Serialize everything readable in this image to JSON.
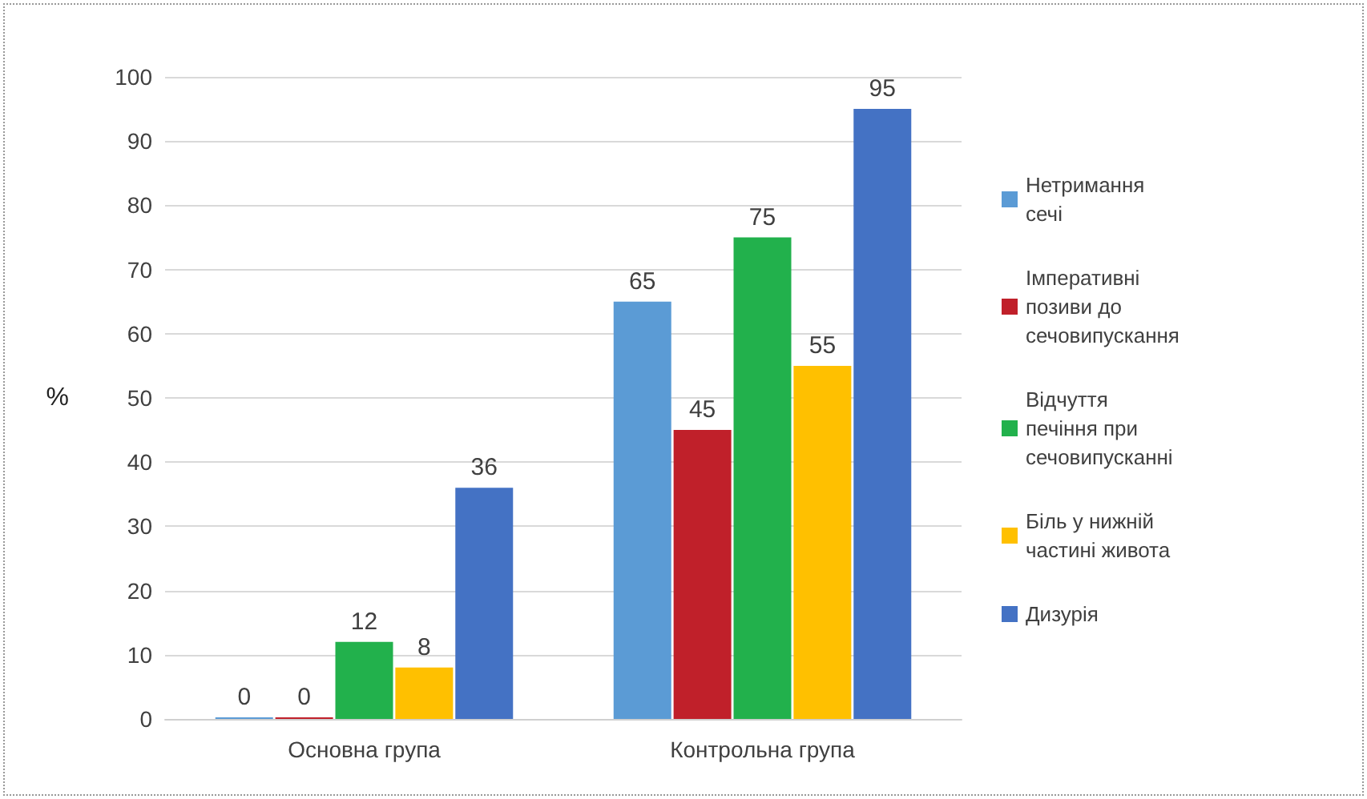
{
  "chart_data": {
    "type": "bar",
    "ylabel": "%",
    "categories": [
      "Основна група",
      "Контрольна група"
    ],
    "series": [
      {
        "name": "Нетримання сечі",
        "color": "#5b9bd5",
        "values": [
          0,
          65
        ]
      },
      {
        "name": "Імперативні позиви до сечовипускання",
        "color": "#c0202a",
        "values": [
          0,
          45
        ]
      },
      {
        "name": "Відчуття печіння при сечовипусканні",
        "color": "#22b14c",
        "values": [
          12,
          75
        ]
      },
      {
        "name": "Біль у нижній частині живота",
        "color": "#ffc000",
        "values": [
          8,
          55
        ]
      },
      {
        "name": "Дизурія",
        "color": "#4472c4",
        "values": [
          36,
          95
        ]
      }
    ],
    "ylim": [
      0,
      100
    ],
    "yticks": [
      0,
      10,
      20,
      30,
      40,
      50,
      60,
      70,
      80,
      90,
      100
    ],
    "grid": "y",
    "legend": "right",
    "data_labels": true
  }
}
